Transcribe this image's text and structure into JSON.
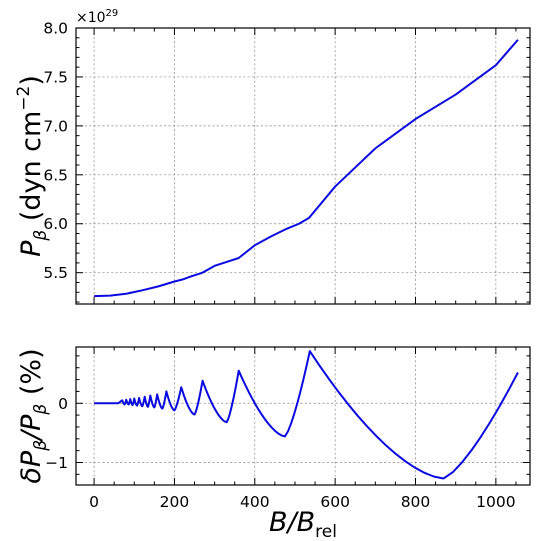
{
  "chart_data": [
    {
      "type": "line",
      "ylabel_main": "P",
      "ylabel_sub": "β",
      "ylabel_unit": " (dyn cm",
      "ylabel_unit_exp": "−2",
      "ylabel_close": ")",
      "multiplier_base": "×10",
      "multiplier_exp": "29",
      "xlim": [
        -45,
        1085
      ],
      "ylim": [
        5.18,
        8.0
      ],
      "xticks": [
        0,
        200,
        400,
        600,
        800,
        1000
      ],
      "yticks": [
        5.5,
        6.0,
        6.5,
        7.0,
        7.5,
        8.0
      ],
      "ytick_labels": [
        "5.5",
        "6.0",
        "6.5",
        "7.0",
        "7.5",
        "8.0"
      ],
      "grid": true,
      "color": "#0a0ae0",
      "series": [
        {
          "x": [
            0,
            40,
            80,
            120,
            160,
            200,
            220,
            240,
            270,
            300,
            330,
            360,
            400,
            440,
            480,
            510,
            535,
            600,
            700,
            800,
            900,
            1000,
            1055
          ],
          "y": [
            5.26,
            5.265,
            5.285,
            5.32,
            5.36,
            5.41,
            5.43,
            5.46,
            5.5,
            5.57,
            5.61,
            5.65,
            5.78,
            5.87,
            5.95,
            6.0,
            6.06,
            6.38,
            6.77,
            7.07,
            7.32,
            7.62,
            7.88
          ]
        }
      ]
    },
    {
      "type": "line",
      "ylabel_main": "δP",
      "ylabel_sub": "β",
      "ylabel_mid": "/P",
      "ylabel_sub2": "β",
      "ylabel_unit": " (%)",
      "xlabel_main": "B/B",
      "xlabel_sub": "rel",
      "xlim": [
        -45,
        1085
      ],
      "ylim": [
        -1.38,
        0.95
      ],
      "xticks": [
        0,
        200,
        400,
        600,
        800,
        1000
      ],
      "xtick_labels": [
        "0",
        "200",
        "400",
        "600",
        "800",
        "1000"
      ],
      "yticks": [
        -1,
        0
      ],
      "ytick_labels": [
        "−1",
        "0"
      ],
      "grid": true,
      "color": "#0a0ae0",
      "peaks": [
        {
          "x": 70,
          "y": 0.05
        },
        {
          "x": 80,
          "y": 0.06
        },
        {
          "x": 90,
          "y": 0.07
        },
        {
          "x": 100,
          "y": 0.08
        },
        {
          "x": 112,
          "y": 0.09
        },
        {
          "x": 126,
          "y": 0.11
        },
        {
          "x": 140,
          "y": 0.13
        },
        {
          "x": 157,
          "y": 0.15
        },
        {
          "x": 180,
          "y": 0.2
        },
        {
          "x": 217,
          "y": 0.27
        },
        {
          "x": 270,
          "y": 0.38
        },
        {
          "x": 360,
          "y": 0.55
        },
        {
          "x": 537,
          "y": 0.88
        }
      ],
      "troughs": [
        {
          "x": 76,
          "y": -0.02
        },
        {
          "x": 86,
          "y": -0.02
        },
        {
          "x": 96,
          "y": -0.03
        },
        {
          "x": 107,
          "y": -0.04
        },
        {
          "x": 120,
          "y": -0.05
        },
        {
          "x": 134,
          "y": -0.06
        },
        {
          "x": 150,
          "y": -0.07
        },
        {
          "x": 170,
          "y": -0.09
        },
        {
          "x": 200,
          "y": -0.12
        },
        {
          "x": 250,
          "y": -0.19
        },
        {
          "x": 330,
          "y": -0.32
        },
        {
          "x": 475,
          "y": -0.56
        },
        {
          "x": 870,
          "y": -1.27
        }
      ],
      "endpoint": {
        "x": 1055,
        "y": 0.52
      }
    }
  ]
}
